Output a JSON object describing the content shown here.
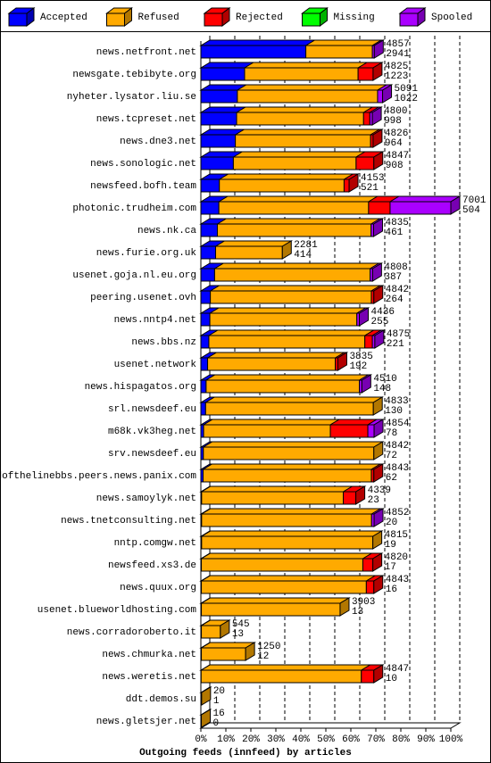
{
  "chart_data": {
    "type": "bar",
    "orientation": "horizontal",
    "stacked": true,
    "three_d": true,
    "xlabel": "Outgoing feeds (innfeed) by articles",
    "categories": [
      "news.netfront.net",
      "newsgate.tebibyte.org",
      "nyheter.lysator.liu.se",
      "news.tcpreset.net",
      "news.dne3.net",
      "news.sonologic.net",
      "newsfeed.bofh.team",
      "photonic.trudheim.com",
      "news.nk.ca",
      "news.furie.org.uk",
      "usenet.goja.nl.eu.org",
      "peering.usenet.ovh",
      "news.nntp4.net",
      "news.bbs.nz",
      "usenet.network",
      "news.hispagatos.org",
      "srl.newsdeef.eu",
      "m68k.vk3heg.net",
      "srv.newsdeef.eu",
      "endofthelinebbs.peers.news.panix.com",
      "news.samoylyk.net",
      "news.tnetconsulting.net",
      "nntp.comgw.net",
      "newsfeed.xs3.de",
      "news.quux.org",
      "usenet.blueworldhosting.com",
      "news.corradoroberto.it",
      "news.chmurka.net",
      "news.weretis.net",
      "ddt.demos.su",
      "news.gletsjer.net"
    ],
    "offered": [
      4857,
      4825,
      5091,
      4800,
      4826,
      4847,
      4153,
      7001,
      4835,
      2281,
      4808,
      4842,
      4436,
      4875,
      3835,
      4510,
      4833,
      4854,
      4842,
      4843,
      4339,
      4852,
      4815,
      4820,
      4843,
      3903,
      545,
      1250,
      4847,
      20,
      16
    ],
    "accepted": [
      2941,
      1223,
      1022,
      998,
      964,
      908,
      521,
      504,
      461,
      414,
      387,
      264,
      255,
      221,
      192,
      148,
      130,
      78,
      72,
      62,
      23,
      20,
      19,
      17,
      16,
      13,
      13,
      12,
      10,
      1,
      0
    ],
    "series": [
      {
        "name": "Accepted",
        "color": "#0000ff",
        "values": [
          42.0,
          17.5,
          14.6,
          14.3,
          13.8,
          13.0,
          7.4,
          7.2,
          6.6,
          5.9,
          5.5,
          3.8,
          3.6,
          3.2,
          2.7,
          2.1,
          1.9,
          1.1,
          1.0,
          0.9,
          0.3,
          0.3,
          0.3,
          0.2,
          0.2,
          0.2,
          0.2,
          0.2,
          0.1,
          0.0,
          0.0
        ]
      },
      {
        "name": "Refused",
        "color": "#ffaa00",
        "values": [
          26.6,
          45.4,
          56.1,
          50.8,
          54.1,
          49.1,
          49.9,
          59.9,
          61.5,
          26.7,
          62.2,
          64.4,
          58.8,
          62.4,
          51.1,
          61.3,
          67.1,
          50.7,
          68.2,
          67.3,
          56.7,
          68.0,
          68.5,
          64.6,
          66.0,
          55.5,
          7.6,
          17.7,
          64.1,
          0.3,
          0.2
        ]
      },
      {
        "name": "Rejected",
        "color": "#ff0000",
        "values": [
          0,
          6.0,
          0,
          2.5,
          1.0,
          7.1,
          2.0,
          8.6,
          0,
          0,
          0,
          1.0,
          0,
          3.0,
          1.0,
          0,
          0,
          15.0,
          0,
          1.0,
          5.0,
          0,
          0,
          4.0,
          3.0,
          0,
          0,
          0,
          5.0,
          0,
          0
        ]
      },
      {
        "name": "Missing",
        "color": "#00ff00",
        "values": [
          0,
          0,
          0,
          0,
          0,
          0,
          0,
          0,
          0,
          0,
          0,
          0,
          0,
          0,
          0,
          0,
          0,
          0,
          0,
          0,
          0,
          0,
          0,
          0,
          0,
          0,
          0,
          0,
          0,
          0,
          0
        ]
      },
      {
        "name": "Spooled",
        "color": "#aa00ff",
        "values": [
          0.8,
          0,
          2.0,
          1.0,
          0,
          0,
          0,
          24.3,
          1.0,
          0,
          1.0,
          0,
          1.0,
          1.0,
          0,
          1.0,
          0,
          2.5,
          0,
          0,
          0,
          1.0,
          0,
          0,
          0,
          0,
          0,
          0,
          0,
          0,
          0
        ]
      }
    ],
    "xlim": [
      0,
      100
    ],
    "xticks": [
      {
        "value": 0,
        "label": "0%"
      },
      {
        "value": 10,
        "label": "10%"
      },
      {
        "value": 20,
        "label": "20%"
      },
      {
        "value": 30,
        "label": "30%"
      },
      {
        "value": 40,
        "label": "40%"
      },
      {
        "value": 50,
        "label": "50%"
      },
      {
        "value": 60,
        "label": "60%"
      },
      {
        "value": 70,
        "label": "70%"
      },
      {
        "value": 80,
        "label": "80%"
      },
      {
        "value": 90,
        "label": "90%"
      },
      {
        "value": 100,
        "label": "100%"
      }
    ],
    "grid": true,
    "legend": "top"
  }
}
